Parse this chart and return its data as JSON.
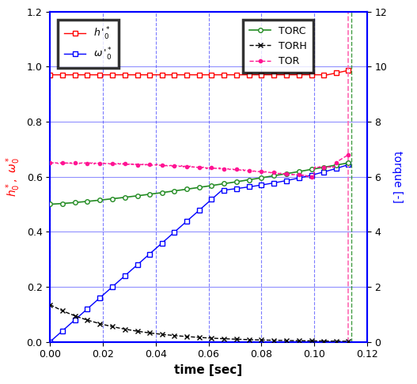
{
  "xlabel": "time [sec]",
  "ylabel_left": "h*_0, ω*_0",
  "ylabel_right": "torque [-]",
  "xlim": [
    0,
    0.12
  ],
  "ylim_left": [
    0.0,
    1.2
  ],
  "ylim_right": [
    0,
    12
  ],
  "xticks": [
    0,
    0.02,
    0.04,
    0.06,
    0.08,
    0.1,
    0.12
  ],
  "yticks_left": [
    0.0,
    0.2,
    0.4,
    0.6,
    0.8,
    1.0,
    1.2
  ],
  "yticks_right": [
    0,
    2,
    4,
    6,
    8,
    10,
    12
  ],
  "vline_x": 0.113,
  "vline_color_pink": "#FF69B4",
  "vline_color_green": "#228B22",
  "h0_color": "#FF0000",
  "w0_color": "#0000FF",
  "TORC_color": "#228B22",
  "TORH_color": "#000000",
  "TOR_color": "#FF1493",
  "grid_solid_color": "#4444FF",
  "grid_dash_color": "#4444FF",
  "spine_color": "#0000FF",
  "figsize": [
    5.27,
    4.86
  ],
  "dpi": 100
}
